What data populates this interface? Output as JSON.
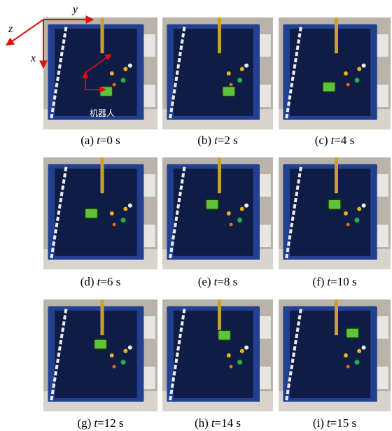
{
  "axes": {
    "y": "y",
    "z": "z",
    "x": "x"
  },
  "robot_label": "机器人",
  "panels": [
    {
      "letter": "(a)",
      "var": "t",
      "value": "=0 s"
    },
    {
      "letter": "(b)",
      "var": "t",
      "value": "=2 s"
    },
    {
      "letter": "(c)",
      "var": "t",
      "value": "=4 s"
    },
    {
      "letter": "(d)",
      "var": "t",
      "value": "=6 s"
    },
    {
      "letter": "(e)",
      "var": "t",
      "value": "=8 s"
    },
    {
      "letter": "(f)",
      "var": "t",
      "value": "=10 s"
    },
    {
      "letter": "(g)",
      "var": "t",
      "value": "=12 s"
    },
    {
      "letter": "(h)",
      "var": "t",
      "value": "=14 s"
    },
    {
      "letter": "(i)",
      "var": "t",
      "value": "=15 s"
    }
  ]
}
